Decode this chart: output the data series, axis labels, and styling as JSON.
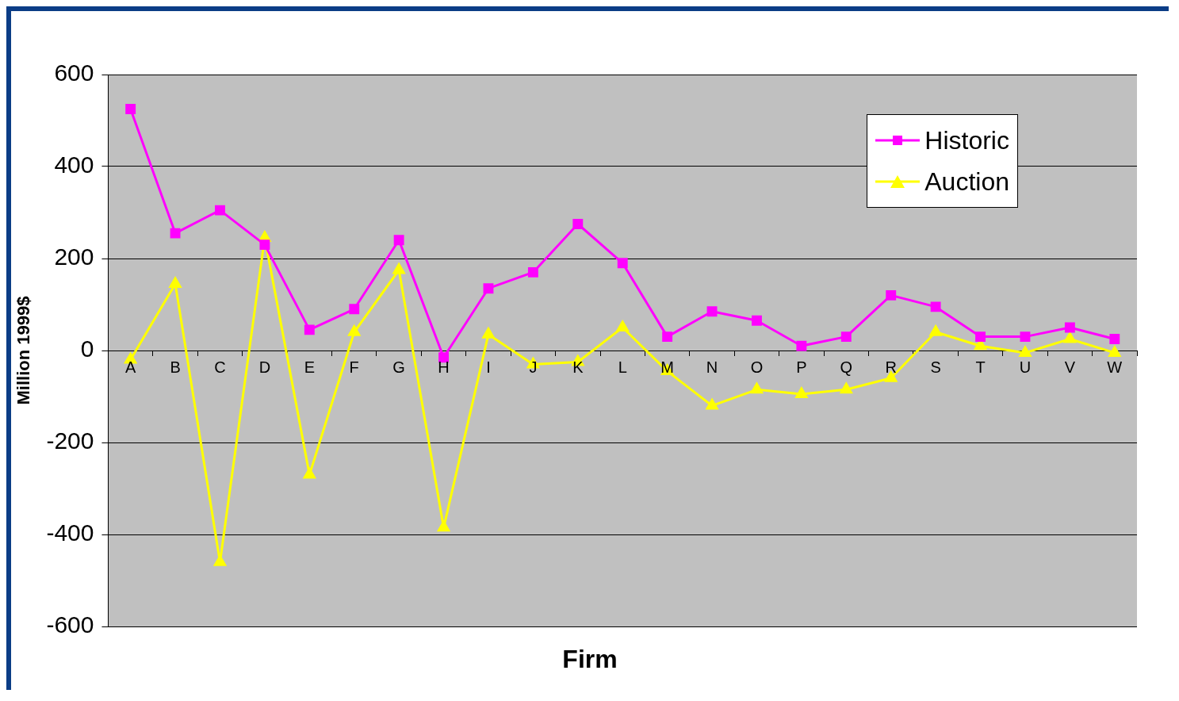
{
  "chart_data": {
    "type": "line",
    "xlabel": "Firm",
    "ylabel": "Million 1999$",
    "categories": [
      "A",
      "B",
      "C",
      "D",
      "E",
      "F",
      "G",
      "H",
      "I",
      "J",
      "K",
      "L",
      "M",
      "N",
      "O",
      "P",
      "Q",
      "R",
      "S",
      "T",
      "U",
      "V",
      "W"
    ],
    "series": [
      {
        "name": "Historic",
        "color": "#ff00ff",
        "marker": "square",
        "values": [
          525,
          255,
          305,
          230,
          45,
          90,
          240,
          -15,
          135,
          170,
          275,
          190,
          30,
          85,
          65,
          10,
          30,
          120,
          95,
          30,
          30,
          50,
          25
        ]
      },
      {
        "name": "Auction",
        "color": "#ffff00",
        "marker": "triangle",
        "values": [
          -20,
          145,
          -460,
          245,
          -270,
          40,
          175,
          -385,
          35,
          -30,
          -25,
          50,
          -45,
          -120,
          -85,
          -95,
          -85,
          -60,
          40,
          10,
          -5,
          25,
          -5
        ]
      }
    ],
    "ylim": [
      -600,
      600
    ],
    "yticks": [
      -600,
      -400,
      -200,
      0,
      200,
      400,
      600
    ],
    "grid": "y",
    "legend": "top right"
  }
}
